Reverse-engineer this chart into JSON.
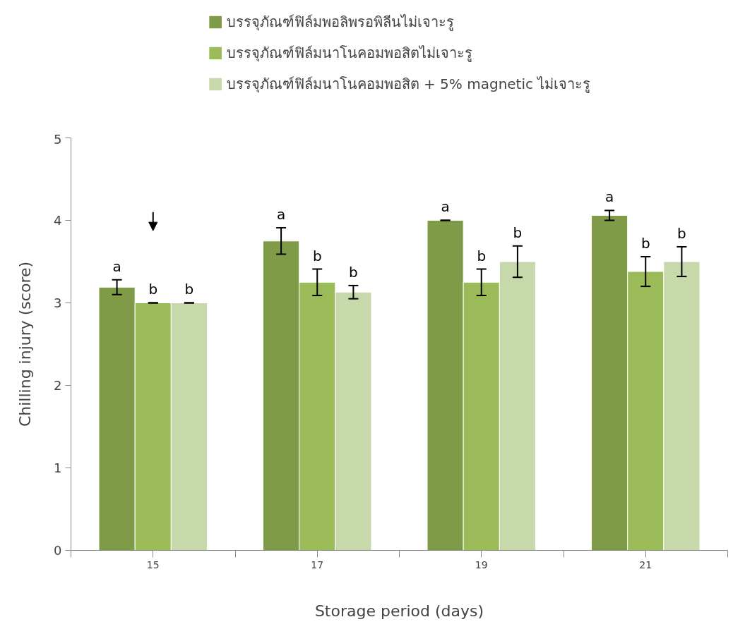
{
  "chart_data": {
    "type": "bar",
    "xlabel": "Storage period (days)",
    "ylabel": "Chilling injury (score)",
    "categories": [
      "15",
      "17",
      "19",
      "21"
    ],
    "series": [
      {
        "name": "บรรจุภัณฑ์ฟิล์มพอลิพรอพิลีนไม่เจาะรู",
        "color": "#7f9b48",
        "values": [
          3.19,
          3.75,
          4.0,
          4.06
        ],
        "errors": [
          0.09,
          0.16,
          0,
          0.06
        ]
      },
      {
        "name": "บรรจุภัณฑ์ฟิล์มนาโนคอมพอสิตไม่เจาะรู",
        "color": "#9bbb59",
        "values": [
          3.0,
          3.25,
          3.25,
          3.38
        ],
        "errors": [
          0,
          0.16,
          0.16,
          0.18
        ]
      },
      {
        "name": "บรรจุภัณฑ์ฟิล์มนาโนคอมพอสิต + 5% magnetic ไม่เจาะรู",
        "color": "#c7d8ab",
        "values": [
          3.0,
          3.13,
          3.5,
          3.5
        ],
        "errors": [
          0,
          0.08,
          0.19,
          0.18
        ]
      }
    ],
    "annotations": [
      "a",
      "b",
      "b",
      "a",
      "b",
      "b",
      "a",
      "b",
      "b",
      "a",
      "b",
      "b"
    ],
    "ylim": [
      0,
      5
    ],
    "yticks": [
      0,
      1,
      2,
      3,
      4,
      5
    ],
    "grid": false,
    "legend": "top"
  }
}
